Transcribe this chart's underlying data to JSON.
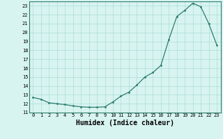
{
  "x": [
    0,
    1,
    2,
    3,
    4,
    5,
    6,
    7,
    8,
    9,
    10,
    11,
    12,
    13,
    14,
    15,
    16,
    17,
    18,
    19,
    20,
    21,
    22,
    23
  ],
  "y": [
    12.7,
    12.5,
    12.1,
    12.0,
    11.9,
    11.75,
    11.65,
    11.6,
    11.6,
    11.65,
    12.2,
    12.85,
    13.3,
    14.1,
    15.0,
    15.5,
    16.3,
    19.2,
    21.8,
    22.5,
    23.3,
    22.9,
    21.0,
    18.6
  ],
  "xlabel": "Humidex (Indice chaleur)",
  "ylim": [
    11,
    23.5
  ],
  "xlim": [
    -0.5,
    23.5
  ],
  "yticks": [
    11,
    12,
    13,
    14,
    15,
    16,
    17,
    18,
    19,
    20,
    21,
    22,
    23
  ],
  "xticks": [
    0,
    1,
    2,
    3,
    4,
    5,
    6,
    7,
    8,
    9,
    10,
    11,
    12,
    13,
    14,
    15,
    16,
    17,
    18,
    19,
    20,
    21,
    22,
    23
  ],
  "line_color": "#2d7d6e",
  "bg_color": "#d8f4f0",
  "grid_color": "#aaddd8",
  "spine_color": "#2d7d6e"
}
